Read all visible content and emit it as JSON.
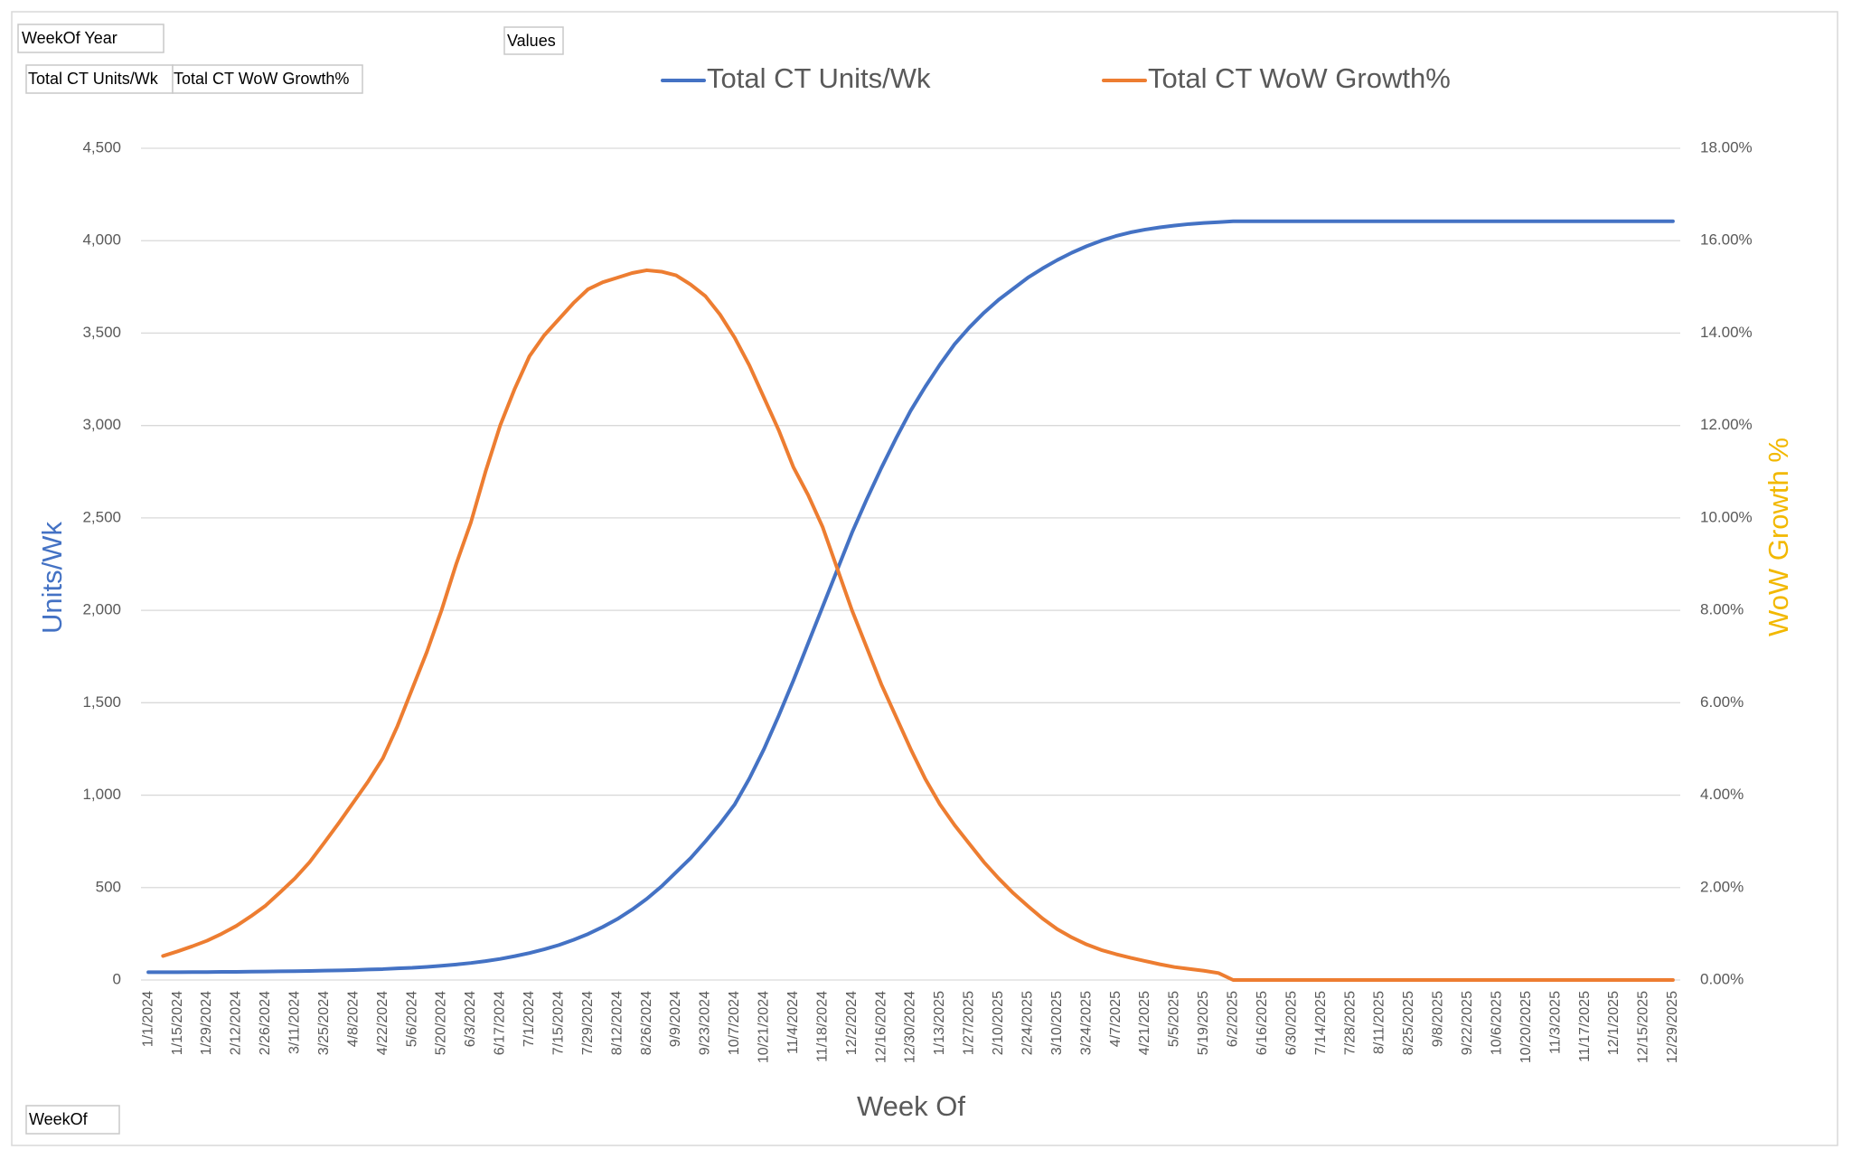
{
  "chart_data": {
    "type": "line",
    "x_label": "Week Of",
    "y_label": "Units/Wk",
    "y2_label": "WoW Growth %",
    "categories": [
      "1/1/2024",
      null,
      "1/15/2024",
      null,
      "1/29/2024",
      null,
      "2/12/2024",
      null,
      "2/26/2024",
      null,
      "3/11/2024",
      null,
      "3/25/2024",
      null,
      "4/8/2024",
      null,
      "4/22/2024",
      null,
      "5/6/2024",
      null,
      "5/20/2024",
      null,
      "6/3/2024",
      null,
      "6/17/2024",
      null,
      "7/1/2024",
      null,
      "7/15/2024",
      null,
      "7/29/2024",
      null,
      "8/12/2024",
      null,
      "8/26/2024",
      null,
      "9/9/2024",
      null,
      "9/23/2024",
      null,
      "10/7/2024",
      null,
      "10/21/2024",
      null,
      "11/4/2024",
      null,
      "11/18/2024",
      null,
      "12/2/2024",
      null,
      "12/16/2024",
      null,
      "12/30/2024",
      null,
      "1/13/2025",
      null,
      "1/27/2025",
      null,
      "2/10/2025",
      null,
      "2/24/2025",
      null,
      "3/10/2025",
      null,
      "3/24/2025",
      null,
      "4/7/2025",
      null,
      "4/21/2025",
      null,
      "5/5/2025",
      null,
      "5/19/2025",
      null,
      "6/2/2025",
      null,
      "6/16/2025",
      null,
      "6/30/2025",
      null,
      "7/14/2025",
      null,
      "7/28/2025",
      null,
      "8/11/2025",
      null,
      "8/25/2025",
      null,
      "9/8/2025",
      null,
      "9/22/2025",
      null,
      "10/6/2025",
      null,
      "10/20/2025",
      null,
      "11/3/2025",
      null,
      "11/17/2025",
      null,
      "12/1/2025",
      null,
      "12/15/2025",
      null,
      "12/29/2025"
    ],
    "series": [
      {
        "name": "Total CT Units/Wk",
        "color": "#4472c4",
        "axis": "y",
        "values": [
          42,
          42,
          42,
          43,
          43,
          44,
          44,
          45,
          46,
          47,
          48,
          49,
          51,
          52,
          54,
          57,
          59,
          63,
          66,
          71,
          77,
          84,
          92,
          102,
          114,
          129,
          146,
          166,
          189,
          217,
          249,
          287,
          330,
          381,
          439,
          506,
          583,
          660,
          750,
          845,
          950,
          1090,
          1250,
          1430,
          1620,
          1820,
          2020,
          2220,
          2420,
          2600,
          2770,
          2930,
          3080,
          3210,
          3330,
          3440,
          3530,
          3610,
          3680,
          3740,
          3800,
          3850,
          3895,
          3935,
          3970,
          4000,
          4025,
          4045,
          4060,
          4072,
          4082,
          4090,
          4096,
          4100,
          4105,
          4105,
          4105,
          4105,
          4105,
          4105,
          4105,
          4105,
          4105,
          4105,
          4105,
          4105,
          4105,
          4105,
          4105,
          4105,
          4105,
          4105,
          4105,
          4105,
          4105,
          4105,
          4105,
          4105,
          4105,
          4105,
          4105,
          4105,
          4105,
          4105,
          4105
        ]
      },
      {
        "name": "Total CT WoW Growth%",
        "color": "#ed7d31",
        "axis": "y2",
        "values": [
          null,
          0.52,
          0.62,
          0.73,
          0.85,
          1.0,
          1.17,
          1.38,
          1.61,
          1.9,
          2.2,
          2.55,
          2.97,
          3.4,
          3.85,
          4.3,
          4.8,
          5.5,
          6.3,
          7.1,
          8.0,
          9.0,
          9.9,
          11.0,
          12.0,
          12.8,
          13.5,
          13.95,
          14.3,
          14.65,
          14.95,
          15.1,
          15.2,
          15.3,
          15.36,
          15.33,
          15.25,
          15.05,
          14.8,
          14.4,
          13.9,
          13.3,
          12.6,
          11.9,
          11.1,
          10.5,
          9.8,
          8.9,
          8.0,
          7.2,
          6.4,
          5.7,
          5.0,
          4.35,
          3.8,
          3.35,
          2.95,
          2.55,
          2.2,
          1.88,
          1.6,
          1.33,
          1.1,
          0.92,
          0.77,
          0.65,
          0.56,
          0.48,
          0.41,
          0.34,
          0.28,
          0.24,
          0.2,
          0.15,
          0,
          0,
          0,
          0,
          0,
          0,
          0,
          0,
          0,
          0,
          0,
          0,
          0,
          0,
          0,
          0,
          0,
          0,
          0,
          0,
          0,
          0,
          0,
          0,
          0,
          0,
          0,
          0,
          0,
          0,
          0
        ]
      }
    ],
    "ylim": [
      0,
      4500
    ],
    "yticks": [
      0,
      500,
      {
        "value": 1000,
        "label": "1,000"
      },
      {
        "value": 1500,
        "label": "1,500"
      },
      {
        "value": 2000,
        "label": "2,000"
      },
      {
        "value": 2500,
        "label": "2,500"
      },
      {
        "value": 3000,
        "label": "3,000"
      },
      {
        "value": 3500,
        "label": "3,500"
      },
      {
        "value": 4000,
        "label": "4,000"
      },
      {
        "value": 4500,
        "label": "4,500"
      }
    ],
    "y2lim": [
      0,
      18
    ],
    "y2ticks": [
      {
        "value": 0,
        "label": "0.00%"
      },
      {
        "value": 2,
        "label": "2.00%"
      },
      {
        "value": 4,
        "label": "4.00%"
      },
      {
        "value": 6,
        "label": "6.00%"
      },
      {
        "value": 8,
        "label": "8.00%"
      },
      {
        "value": 10,
        "label": "10.00%"
      },
      {
        "value": 12,
        "label": "12.00%"
      },
      {
        "value": 14,
        "label": "14.00%"
      },
      {
        "value": 16,
        "label": "16.00%"
      },
      {
        "value": 18,
        "label": "18.00%"
      }
    ],
    "grid": true,
    "legend": "top",
    "y_label_color": "#4472c4",
    "y2_label_color": "#f2b800"
  },
  "pivot_fields": {
    "filter": "WeekOf Year",
    "values": "Values",
    "value_fields": [
      "Total CT Units/Wk",
      "Total CT WoW Growth%"
    ],
    "axis": "WeekOf"
  }
}
